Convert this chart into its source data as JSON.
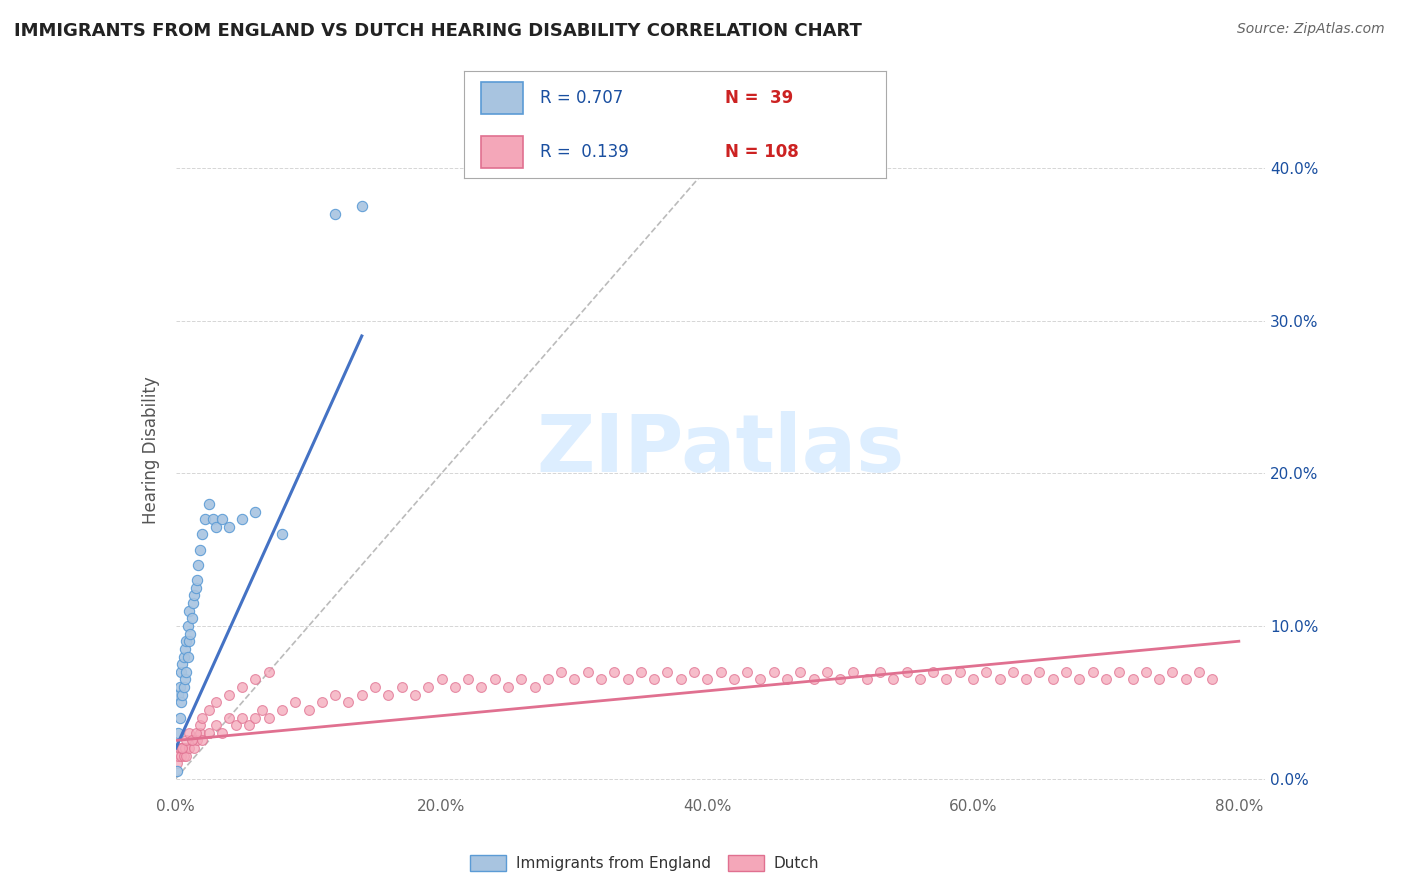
{
  "title": "IMMIGRANTS FROM ENGLAND VS DUTCH HEARING DISABILITY CORRELATION CHART",
  "source": "Source: ZipAtlas.com",
  "ylabel": "Hearing Disability",
  "xlim": [
    0.0,
    0.82
  ],
  "ylim": [
    -0.01,
    0.44
  ],
  "x_tick_vals": [
    0.0,
    0.2,
    0.4,
    0.6,
    0.8
  ],
  "x_tick_labels": [
    "0.0%",
    "20.0%",
    "40.0%",
    "60.0%",
    "80.0%"
  ],
  "y_tick_vals": [
    0.0,
    0.1,
    0.2,
    0.3,
    0.4
  ],
  "y_tick_labels": [
    "0.0%",
    "10.0%",
    "20.0%",
    "30.0%",
    "40.0%"
  ],
  "legend_labels": [
    "Immigrants from England",
    "Dutch"
  ],
  "legend_r1": "R = 0.707",
  "legend_n1": "N =  39",
  "legend_r2": "R =  0.139",
  "legend_n2": "N = 108",
  "color_england": "#a8c4e0",
  "color_england_edge": "#5b9bd5",
  "color_dutch": "#f4a7b9",
  "color_dutch_edge": "#e07090",
  "color_england_line": "#4472c4",
  "color_dutch_line": "#e07090",
  "color_diagonal": "#bbbbbb",
  "background_color": "#ffffff",
  "title_color": "#222222",
  "source_color": "#666666",
  "legend_text_color": "#1a4fa0",
  "legend_n_color": "#cc2222",
  "england_x": [
    0.001,
    0.002,
    0.002,
    0.003,
    0.003,
    0.004,
    0.004,
    0.005,
    0.005,
    0.006,
    0.006,
    0.007,
    0.007,
    0.008,
    0.008,
    0.009,
    0.009,
    0.01,
    0.01,
    0.011,
    0.012,
    0.013,
    0.014,
    0.015,
    0.016,
    0.017,
    0.018,
    0.02,
    0.022,
    0.025,
    0.028,
    0.03,
    0.035,
    0.04,
    0.05,
    0.06,
    0.08,
    0.12,
    0.14
  ],
  "england_y": [
    0.005,
    0.03,
    0.055,
    0.04,
    0.06,
    0.05,
    0.07,
    0.055,
    0.075,
    0.06,
    0.08,
    0.065,
    0.085,
    0.07,
    0.09,
    0.08,
    0.1,
    0.09,
    0.11,
    0.095,
    0.105,
    0.115,
    0.12,
    0.125,
    0.13,
    0.14,
    0.15,
    0.16,
    0.17,
    0.18,
    0.17,
    0.165,
    0.17,
    0.165,
    0.17,
    0.175,
    0.16,
    0.37,
    0.375
  ],
  "dutch_x": [
    0.001,
    0.002,
    0.003,
    0.004,
    0.005,
    0.006,
    0.007,
    0.008,
    0.01,
    0.012,
    0.014,
    0.016,
    0.018,
    0.02,
    0.025,
    0.03,
    0.035,
    0.04,
    0.045,
    0.05,
    0.055,
    0.06,
    0.065,
    0.07,
    0.08,
    0.09,
    0.1,
    0.11,
    0.12,
    0.13,
    0.14,
    0.15,
    0.16,
    0.17,
    0.18,
    0.19,
    0.2,
    0.21,
    0.22,
    0.23,
    0.24,
    0.25,
    0.26,
    0.27,
    0.28,
    0.29,
    0.3,
    0.31,
    0.32,
    0.33,
    0.34,
    0.35,
    0.36,
    0.37,
    0.38,
    0.39,
    0.4,
    0.41,
    0.42,
    0.43,
    0.44,
    0.45,
    0.46,
    0.47,
    0.48,
    0.49,
    0.5,
    0.51,
    0.52,
    0.53,
    0.54,
    0.55,
    0.56,
    0.57,
    0.58,
    0.59,
    0.6,
    0.61,
    0.62,
    0.63,
    0.64,
    0.65,
    0.66,
    0.67,
    0.68,
    0.69,
    0.7,
    0.71,
    0.72,
    0.73,
    0.74,
    0.75,
    0.76,
    0.77,
    0.78,
    0.005,
    0.008,
    0.01,
    0.012,
    0.015,
    0.018,
    0.02,
    0.025,
    0.03,
    0.04,
    0.05,
    0.06,
    0.07
  ],
  "dutch_y": [
    0.01,
    0.015,
    0.02,
    0.015,
    0.02,
    0.015,
    0.02,
    0.015,
    0.02,
    0.025,
    0.02,
    0.025,
    0.03,
    0.025,
    0.03,
    0.035,
    0.03,
    0.04,
    0.035,
    0.04,
    0.035,
    0.04,
    0.045,
    0.04,
    0.045,
    0.05,
    0.045,
    0.05,
    0.055,
    0.05,
    0.055,
    0.06,
    0.055,
    0.06,
    0.055,
    0.06,
    0.065,
    0.06,
    0.065,
    0.06,
    0.065,
    0.06,
    0.065,
    0.06,
    0.065,
    0.07,
    0.065,
    0.07,
    0.065,
    0.07,
    0.065,
    0.07,
    0.065,
    0.07,
    0.065,
    0.07,
    0.065,
    0.07,
    0.065,
    0.07,
    0.065,
    0.07,
    0.065,
    0.07,
    0.065,
    0.07,
    0.065,
    0.07,
    0.065,
    0.07,
    0.065,
    0.07,
    0.065,
    0.07,
    0.065,
    0.07,
    0.065,
    0.07,
    0.065,
    0.07,
    0.065,
    0.07,
    0.065,
    0.07,
    0.065,
    0.07,
    0.065,
    0.07,
    0.065,
    0.07,
    0.065,
    0.07,
    0.065,
    0.07,
    0.065,
    0.02,
    0.025,
    0.03,
    0.025,
    0.03,
    0.035,
    0.04,
    0.045,
    0.05,
    0.055,
    0.06,
    0.065,
    0.07
  ]
}
